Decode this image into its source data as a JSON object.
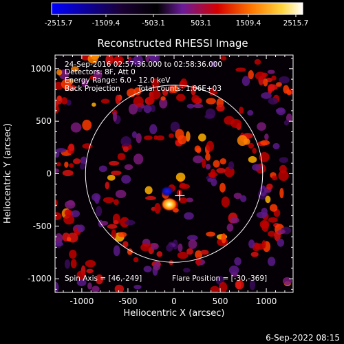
{
  "colorbar": {
    "tick_labels": [
      "-2515.7",
      "-1509.4",
      "-503.1",
      "503.1",
      "1509.4",
      "2515.7"
    ],
    "range": [
      -2515.7,
      2515.7
    ],
    "colormap": [
      "#0000ff",
      "#000000",
      "#6a1b9a",
      "#d50000",
      "#ff7a00",
      "#ffd740",
      "#ffffff"
    ]
  },
  "plot": {
    "title": "Reconstructed RHESSI Image",
    "xlabel": "Heliocentric X (arcsec)",
    "ylabel": "Heliocentric Y (arcsec)",
    "x_ticks": [
      "-1000",
      "-500",
      "0",
      "500",
      "1000"
    ],
    "y_ticks": [
      "1000",
      "500",
      "0",
      "-500",
      "-1000"
    ],
    "xlim": [
      -1290,
      1290
    ],
    "ylim": [
      -1130,
      1130
    ],
    "solar_limb_radius_arcsec": 960,
    "flare_marker_arcsec": [
      62,
      -209
    ],
    "info_lines": [
      "24-Sep-2016 02:57:36.000 to 02:58:36.000",
      "Detectors: 8F, Att 0",
      "Energy Range: 6.0 - 12.0 keV",
      "Back Projection"
    ],
    "total_counts": "Total counts: 1.06E+03",
    "spin_axis": "Spin Axis = [46,-249]",
    "flare_position": "Flare Position = [-30,-369]"
  },
  "footer": {
    "date": "6-Sep-2022 08:15"
  }
}
